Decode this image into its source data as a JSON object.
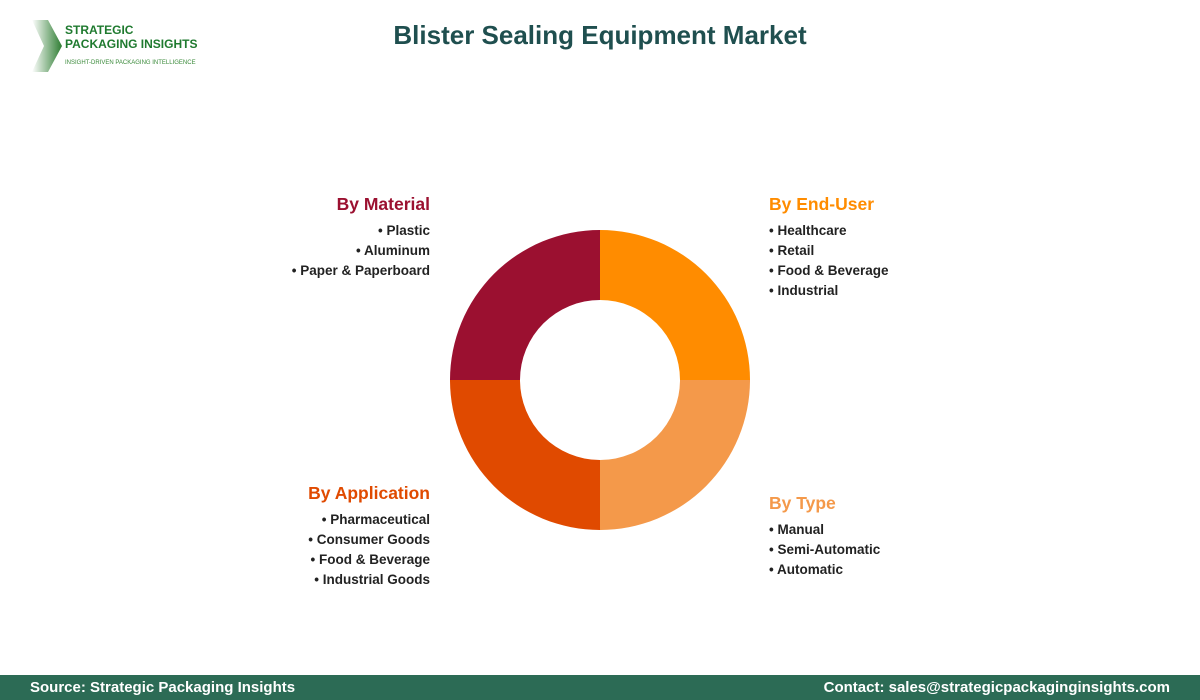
{
  "title": "Blister Sealing Equipment Market",
  "logo": {
    "line1": "STRATEGIC",
    "line2": "PACKAGING INSIGHTS",
    "tagline": "INSIGHT-DRIVEN PACKAGING INTELLIGENCE"
  },
  "segments": {
    "material": {
      "title": "By Material",
      "color": "#9b1030",
      "items": [
        "• Plastic",
        "• Aluminum",
        "• Paper & Paperboard"
      ]
    },
    "end_user": {
      "title": "By End-User",
      "color": "#ff8c00",
      "items": [
        "• Healthcare",
        "• Retail",
        "• Food & Beverage",
        "• Industrial"
      ]
    },
    "application": {
      "title": "By Application",
      "color": "#e04a00",
      "items": [
        "• Pharmaceutical",
        "• Consumer Goods",
        "• Food & Beverage",
        "• Industrial Goods"
      ]
    },
    "type": {
      "title": "By Type",
      "color": "#f4994a",
      "items": [
        "• Manual",
        "• Semi-Automatic",
        "• Automatic"
      ]
    }
  },
  "footer": {
    "source": "Source: Strategic Packaging Insights",
    "contact": "Contact: sales@strategicpackaginginsights.com"
  }
}
